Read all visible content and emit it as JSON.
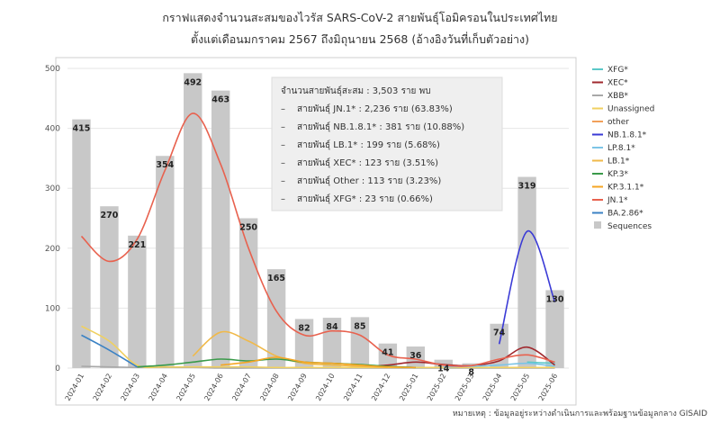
{
  "chart_data": {
    "type": "bar",
    "title": "กราฟแสดงจำนวนสะสมของไวรัส SARS-CoV-2 สายพันธุ์โอมิครอนในประเทศไทย",
    "subtitle": "ตั้งแต่เดือนมกราคม 2567 ถึงมิถุนายน 2568 (อ้างอิงวันที่เก็บตัวอย่าง)",
    "categories": [
      "2024-01",
      "2024-02",
      "2024-03",
      "2024-04",
      "2024-05",
      "2024-06",
      "2024-07",
      "2024-08",
      "2024-09",
      "2024-10",
      "2024-11",
      "2024-12",
      "2025-01",
      "2025-02",
      "2025-03",
      "2025-04",
      "2025-05",
      "2025-06"
    ],
    "ylim": [
      0,
      500
    ],
    "yticks": [
      0,
      100,
      200,
      300,
      400,
      500
    ],
    "grid": "horizontal",
    "legend_position": "right",
    "bar_series": {
      "name": "Sequences",
      "color": "#c8c8c8",
      "values": [
        415,
        270,
        221,
        354,
        492,
        463,
        250,
        165,
        82,
        84,
        85,
        41,
        36,
        14,
        8,
        74,
        319,
        130
      ]
    },
    "line_series": [
      {
        "name": "XFG*",
        "color": "#5bc8c8",
        "values": [
          null,
          null,
          null,
          null,
          null,
          null,
          null,
          null,
          null,
          null,
          null,
          null,
          null,
          null,
          null,
          null,
          10,
          8
        ]
      },
      {
        "name": "XEC*",
        "color": "#a0282d",
        "values": [
          null,
          null,
          null,
          null,
          null,
          null,
          null,
          null,
          null,
          null,
          2,
          5,
          10,
          6,
          4,
          12,
          35,
          5
        ]
      },
      {
        "name": "XBB*",
        "color": "#a8a8a8",
        "values": [
          3,
          2,
          1,
          1,
          1,
          0,
          0,
          0,
          0,
          0,
          0,
          0,
          0,
          0,
          0,
          0,
          0,
          0
        ]
      },
      {
        "name": "Unassigned",
        "color": "#f0d060",
        "values": [
          70,
          45,
          5,
          2,
          2,
          2,
          2,
          1,
          1,
          1,
          1,
          1,
          1,
          1,
          1,
          1,
          1,
          1
        ]
      },
      {
        "name": "other",
        "color": "#f2a05a",
        "values": [
          null,
          null,
          null,
          null,
          null,
          null,
          null,
          null,
          null,
          null,
          null,
          null,
          null,
          null,
          null,
          null,
          null,
          null
        ]
      },
      {
        "name": "NB.1.8.1*",
        "color": "#3a3ad6",
        "values": [
          null,
          null,
          null,
          null,
          null,
          null,
          null,
          null,
          null,
          null,
          null,
          null,
          null,
          null,
          null,
          40,
          228,
          110
        ]
      },
      {
        "name": "LP.8.1*",
        "color": "#7cc4e6",
        "values": [
          null,
          null,
          null,
          null,
          null,
          null,
          null,
          null,
          null,
          null,
          null,
          null,
          null,
          2,
          3,
          5,
          8,
          3
        ]
      },
      {
        "name": "LB.1*",
        "color": "#f0b94a",
        "values": [
          null,
          null,
          null,
          null,
          20,
          60,
          45,
          20,
          8,
          5,
          3,
          1,
          null,
          null,
          null,
          null,
          null,
          null
        ]
      },
      {
        "name": "KP.3*",
        "color": "#3a9a4a",
        "values": [
          null,
          null,
          2,
          5,
          10,
          15,
          12,
          15,
          10,
          8,
          6,
          3,
          1,
          null,
          null,
          null,
          null,
          null
        ]
      },
      {
        "name": "KP.3.1.1*",
        "color": "#f5a623",
        "values": [
          null,
          null,
          null,
          null,
          null,
          5,
          10,
          18,
          10,
          8,
          5,
          2,
          1,
          null,
          null,
          null,
          null,
          null
        ]
      },
      {
        "name": "JN.1*",
        "color": "#e8614e",
        "values": [
          220,
          178,
          215,
          330,
          425,
          340,
          200,
          95,
          55,
          62,
          55,
          22,
          15,
          5,
          4,
          15,
          22,
          10
        ]
      },
      {
        "name": "BA.2.86*",
        "color": "#3b82c4",
        "values": [
          55,
          30,
          2,
          null,
          null,
          null,
          null,
          null,
          null,
          null,
          null,
          null,
          null,
          null,
          null,
          null,
          null,
          null
        ]
      }
    ],
    "legend_items": [
      "XFG*",
      "XEC*",
      "XBB*",
      "Unassigned",
      "other",
      "NB.1.8.1*",
      "LP.8.1*",
      "LB.1*",
      "KP.3*",
      "KP.3.1.1*",
      "JN.1*",
      "BA.2.86*",
      "Sequences"
    ],
    "annotation": {
      "header": "จำนวนสายพันธุ์สะสม : 3,503 ราย พบ",
      "lines": [
        "สายพันธุ์ JN.1* : 2,236 ราย (63.83%)",
        "สายพันธุ์ NB.1.8.1* : 381 ราย (10.88%)",
        "สายพันธุ์ LB.1* : 199 ราย (5.68%)",
        "สายพันธุ์ XEC* : 123 ราย (3.51%)",
        "สายพันธุ์ Other : 113 ราย (3.23%)",
        "สายพันธุ์ XFG* : 23 ราย (0.66%)"
      ]
    },
    "footnote": "หมายเหตุ : ข้อมูลอยู่ระหว่างดำเนินการและพร้อมฐานข้อมูลกลาง GISAID"
  }
}
